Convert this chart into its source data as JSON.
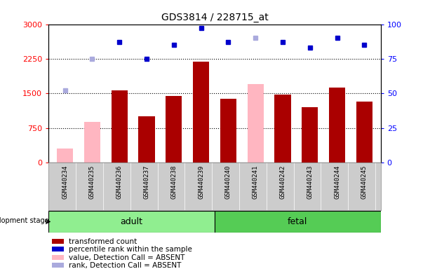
{
  "title": "GDS3814 / 228715_at",
  "samples": [
    "GSM440234",
    "GSM440235",
    "GSM440236",
    "GSM440237",
    "GSM440238",
    "GSM440239",
    "GSM440240",
    "GSM440241",
    "GSM440242",
    "GSM440243",
    "GSM440244",
    "GSM440245"
  ],
  "bar_values": [
    null,
    null,
    1570,
    1000,
    1440,
    2190,
    1390,
    null,
    1480,
    1200,
    1630,
    1330
  ],
  "bar_absent_values": [
    310,
    890,
    null,
    null,
    null,
    null,
    null,
    1700,
    null,
    null,
    null,
    null
  ],
  "rank_values": [
    null,
    null,
    87,
    75,
    85,
    97,
    87,
    null,
    87,
    83,
    90,
    85
  ],
  "rank_absent_values": [
    52,
    75,
    null,
    null,
    null,
    null,
    null,
    90,
    null,
    null,
    null,
    null
  ],
  "adult_count": 6,
  "fetal_count": 6,
  "bar_color": "#aa0000",
  "bar_absent_color": "#ffb6c1",
  "rank_color": "#0000cc",
  "rank_absent_color": "#aaaadd",
  "ylim_left": [
    0,
    3000
  ],
  "ylim_right": [
    0,
    100
  ],
  "yticks_left": [
    0,
    750,
    1500,
    2250,
    3000
  ],
  "yticks_right": [
    0,
    25,
    50,
    75,
    100
  ],
  "adult_color": "#90ee90",
  "fetal_color": "#55cc55",
  "bg_color": "#cccccc",
  "legend_items": [
    "transformed count",
    "percentile rank within the sample",
    "value, Detection Call = ABSENT",
    "rank, Detection Call = ABSENT"
  ]
}
